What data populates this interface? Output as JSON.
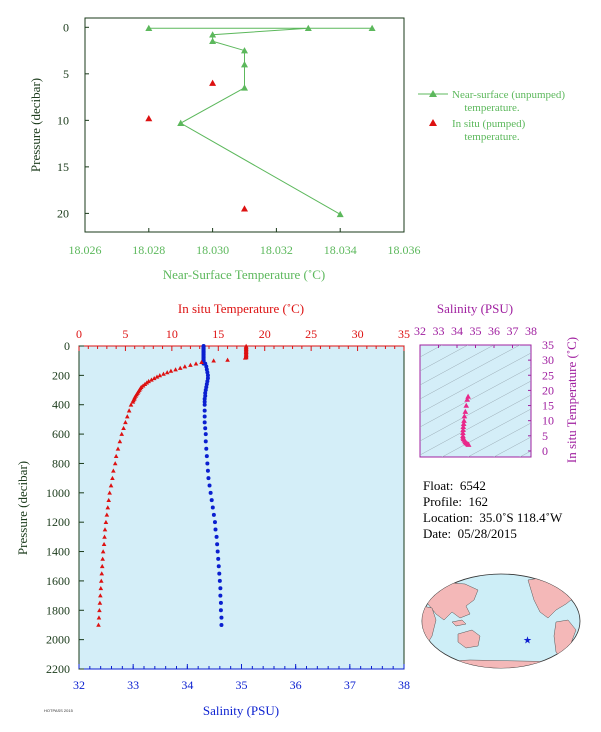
{
  "chart_data": [
    {
      "type": "scatter",
      "xlabel": "Near-Surface Temperature (˚C)",
      "ylabel": "Pressure (decibar)",
      "xlim": [
        18.026,
        18.036
      ],
      "ylim": [
        22,
        -1
      ],
      "x_ticks": [
        "18.026",
        "18.028",
        "18.030",
        "18.032",
        "18.034",
        "18.036"
      ],
      "y_ticks": [
        "0",
        "5",
        "10",
        "15",
        "20"
      ],
      "series": [
        {
          "name": "Near-surface (unpumped) temperature.",
          "color": "#5cb85c",
          "points": [
            [
              18.028,
              0.1
            ],
            [
              18.033,
              0.1
            ],
            [
              18.035,
              0.1
            ],
            [
              18.03,
              0.8
            ],
            [
              18.03,
              1.5
            ],
            [
              18.031,
              2.5
            ],
            [
              18.031,
              4.0
            ],
            [
              18.031,
              6.5
            ],
            [
              18.029,
              10.3
            ],
            [
              18.034,
              20.1
            ]
          ]
        },
        {
          "name": "In situ (pumped) temperature.",
          "color": "#dd1111",
          "points": [
            [
              18.03,
              6.0
            ],
            [
              18.028,
              9.8
            ],
            [
              18.031,
              19.5
            ]
          ]
        }
      ],
      "legend": [
        "Near-surface (unpumped)",
        "temperature.",
        "In situ (pumped)",
        "temperature."
      ]
    },
    {
      "type": "scatter",
      "title_top": "In situ Temperature (˚C)",
      "xlabel": "Salinity (PSU)",
      "ylabel": "Pressure (decibar)",
      "temp_lim": [
        0,
        35
      ],
      "sal_lim": [
        32,
        38
      ],
      "ylim": [
        2200,
        0
      ],
      "temp_ticks": [
        "0",
        "5",
        "10",
        "15",
        "20",
        "25",
        "30",
        "35"
      ],
      "sal_ticks": [
        "32",
        "33",
        "34",
        "35",
        "36",
        "37",
        "38"
      ],
      "y_ticks": [
        "0",
        "200",
        "400",
        "600",
        "800",
        "1000",
        "1200",
        "1400",
        "1600",
        "1800",
        "2000",
        "2200"
      ],
      "temperature": {
        "color": "#dd1111",
        "pressure": [
          5,
          20,
          40,
          60,
          80,
          95,
          100,
          110,
          120,
          130,
          140,
          150,
          160,
          170,
          180,
          190,
          200,
          210,
          220,
          230,
          240,
          250,
          260,
          270,
          280,
          290,
          300,
          310,
          320,
          330,
          340,
          350,
          360,
          370,
          380,
          400,
          440,
          480,
          520,
          560,
          600,
          650,
          700,
          750,
          800,
          850,
          900,
          950,
          1000,
          1050,
          1100,
          1150,
          1200,
          1250,
          1300,
          1350,
          1400,
          1450,
          1500,
          1550,
          1600,
          1650,
          1700,
          1750,
          1800,
          1850,
          1900
        ],
        "values": [
          18.0,
          18.0,
          18.0,
          18.0,
          17.9,
          16.0,
          14.5,
          13.2,
          12.6,
          12.0,
          11.4,
          10.9,
          10.4,
          9.9,
          9.5,
          9.1,
          8.7,
          8.4,
          8.1,
          7.8,
          7.5,
          7.3,
          7.1,
          6.9,
          6.7,
          6.6,
          6.5,
          6.4,
          6.3,
          6.2,
          6.1,
          6.0,
          5.95,
          5.85,
          5.8,
          5.6,
          5.4,
          5.2,
          5.0,
          4.8,
          4.6,
          4.4,
          4.2,
          4.0,
          3.9,
          3.7,
          3.6,
          3.45,
          3.3,
          3.2,
          3.1,
          3.0,
          2.9,
          2.8,
          2.75,
          2.7,
          2.6,
          2.55,
          2.5,
          2.45,
          2.4,
          2.35,
          2.3,
          2.25,
          2.2,
          2.15,
          2.1
        ]
      },
      "salinity": {
        "color": "#0a1fd0",
        "pressure": [
          5,
          20,
          40,
          60,
          80,
          100,
          120,
          140,
          160,
          180,
          200,
          220,
          240,
          260,
          280,
          300,
          320,
          340,
          360,
          380,
          400,
          440,
          480,
          520,
          560,
          600,
          650,
          700,
          750,
          800,
          850,
          900,
          950,
          1000,
          1050,
          1100,
          1150,
          1200,
          1250,
          1300,
          1350,
          1400,
          1450,
          1500,
          1550,
          1600,
          1650,
          1700,
          1750,
          1800,
          1850,
          1900
        ],
        "values": [
          34.3,
          34.3,
          34.3,
          34.3,
          34.3,
          34.3,
          34.33,
          34.35,
          34.36,
          34.37,
          34.38,
          34.38,
          34.37,
          34.36,
          34.35,
          34.34,
          34.33,
          34.33,
          34.32,
          34.32,
          34.32,
          34.32,
          34.32,
          34.32,
          34.33,
          34.34,
          34.34,
          34.35,
          34.36,
          34.37,
          34.38,
          34.39,
          34.41,
          34.43,
          34.45,
          34.47,
          34.49,
          34.51,
          34.52,
          34.54,
          34.55,
          34.56,
          34.57,
          34.58,
          34.59,
          34.6,
          34.61,
          34.61,
          34.62,
          34.62,
          34.63,
          34.63
        ]
      }
    },
    {
      "type": "scatter",
      "title": "Salinity (PSU)",
      "ylabel": "In situ Temperature (˚C)",
      "xlim": [
        32,
        38
      ],
      "ylim": [
        -2,
        35
      ],
      "x_ticks": [
        "32",
        "33",
        "34",
        "35",
        "36",
        "37",
        "38"
      ],
      "y_ticks": [
        "0",
        "5",
        "10",
        "15",
        "20",
        "25",
        "30",
        "35"
      ],
      "series": [
        {
          "color": "#e8288a",
          "points": [
            [
              34.6,
              18.0
            ],
            [
              34.55,
              17.0
            ],
            [
              34.5,
              15.0
            ],
            [
              34.45,
              13.0
            ],
            [
              34.4,
              11.5
            ],
            [
              34.38,
              10.0
            ],
            [
              34.36,
              9.0
            ],
            [
              34.34,
              8.0
            ],
            [
              34.33,
              7.0
            ],
            [
              34.32,
              6.0
            ],
            [
              34.32,
              5.0
            ],
            [
              34.33,
              4.5
            ],
            [
              34.35,
              4.0
            ],
            [
              34.4,
              3.5
            ],
            [
              34.45,
              3.0
            ],
            [
              34.5,
              2.7
            ],
            [
              34.55,
              2.4
            ],
            [
              34.6,
              2.2
            ],
            [
              34.63,
              2.1
            ]
          ]
        }
      ]
    }
  ],
  "info": {
    "float_label": "Float:",
    "float_value": "6542",
    "profile_label": "Profile:",
    "profile_value": "162",
    "location_label": "Location:",
    "location_value": "35.0˚S  118.4˚W",
    "date_label": "Date:",
    "date_value": "05/28/2015"
  },
  "map": {
    "marker_lon": -118.4,
    "marker_lat": -35.0,
    "land_color": "#f4b8b8",
    "ocean_color": "#cdeef7",
    "marker_color": "#1020d0"
  },
  "footer": "HOTPASS 2015"
}
